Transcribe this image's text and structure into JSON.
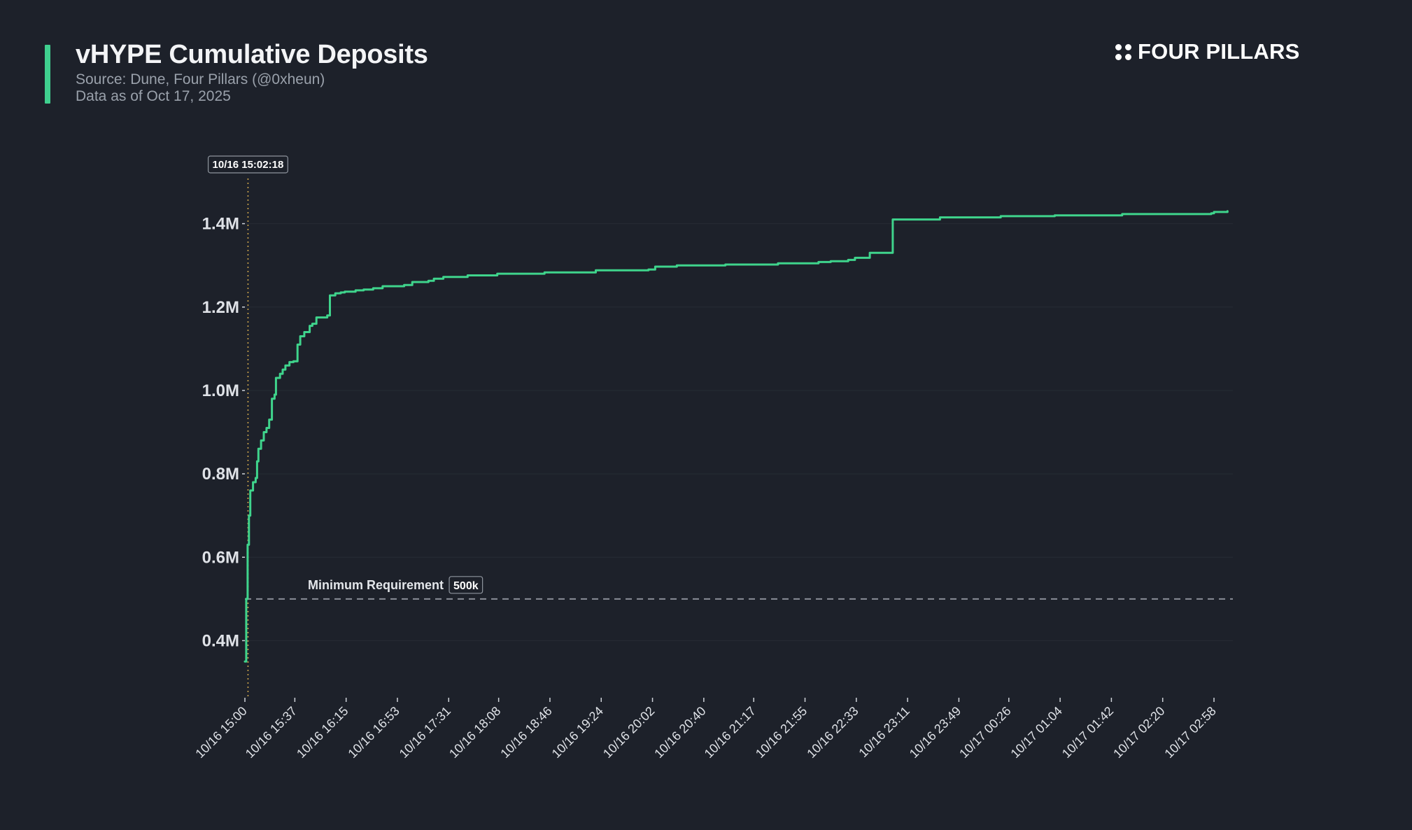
{
  "header": {
    "title": "vHYPE Cumulative Deposits",
    "source": "Source: Dune, Four Pillars (@0xheun)",
    "as_of": "Data as of Oct 17, 2025"
  },
  "brand": {
    "name": "FOUR PILLARS",
    "icon": "four-dots-icon"
  },
  "colors": {
    "background": "#1d212a",
    "line": "#3fd48c",
    "accent": "#3fcf8e",
    "marker_line": "#c9a24a",
    "threshold_line": "#8a8f98",
    "grid": "#272c35"
  },
  "chart_data": {
    "type": "line",
    "title": "vHYPE Cumulative Deposits",
    "xlabel": "",
    "ylabel": "",
    "ylim": [
      0.3,
      1.5
    ],
    "y_unit": "M",
    "yticks": [
      0.4,
      0.6,
      0.8,
      1.0,
      1.2,
      1.4
    ],
    "ytick_labels": [
      "0.4M",
      "0.6M",
      "0.8M",
      "1.0M",
      "1.2M",
      "1.4M"
    ],
    "xlim": [
      "10/16 15:00",
      "10/17 03:12"
    ],
    "xticks": [
      "10/16 15:00",
      "10/16 15:37",
      "10/16 16:15",
      "10/16 16:53",
      "10/16 17:31",
      "10/16 18:08",
      "10/16 18:46",
      "10/16 19:24",
      "10/16 20:02",
      "10/16 20:40",
      "10/16 21:17",
      "10/16 21:55",
      "10/16 22:33",
      "10/16 23:11",
      "10/16 23:49",
      "10/17 00:26",
      "10/17 01:04",
      "10/17 01:42",
      "10/17 02:20",
      "10/17 02:58"
    ],
    "grid": true,
    "series": [
      {
        "step": true,
        "x": [
          "10/16 15:00",
          "10/16 15:01",
          "10/16 15:02",
          "10/16 15:03",
          "10/16 15:04",
          "10/16 15:06",
          "10/16 15:08",
          "10/16 15:09",
          "10/16 15:10",
          "10/16 15:12",
          "10/16 15:14",
          "10/16 15:16",
          "10/16 15:18",
          "10/16 15:20",
          "10/16 15:22",
          "10/16 15:23",
          "10/16 15:26",
          "10/16 15:28",
          "10/16 15:30",
          "10/16 15:33",
          "10/16 15:36",
          "10/16 15:39",
          "10/16 15:41",
          "10/16 15:44",
          "10/16 15:48",
          "10/16 15:50",
          "10/16 15:53",
          "10/16 16:01",
          "10/16 16:03",
          "10/16 16:07",
          "10/16 16:11",
          "10/16 16:14",
          "10/16 16:22",
          "10/16 16:28",
          "10/16 16:35",
          "10/16 16:42",
          "10/16 16:58",
          "10/16 17:04",
          "10/16 17:16",
          "10/16 17:20",
          "10/16 17:27",
          "10/16 17:45",
          "10/16 18:07",
          "10/16 18:42",
          "10/16 19:20",
          "10/16 19:59",
          "10/16 20:04",
          "10/16 20:20",
          "10/16 20:56",
          "10/16 21:35",
          "10/16 22:05",
          "10/16 22:14",
          "10/16 22:27",
          "10/16 22:32",
          "10/16 22:43",
          "10/16 23:00",
          "10/16 23:35",
          "10/17 00:20",
          "10/17 01:00",
          "10/17 01:50",
          "10/17 02:56",
          "10/17 02:58",
          "10/17 03:08"
        ],
        "y": [
          0.35,
          0.5,
          0.63,
          0.7,
          0.76,
          0.78,
          0.79,
          0.83,
          0.86,
          0.88,
          0.9,
          0.91,
          0.93,
          0.98,
          0.99,
          1.03,
          1.04,
          1.05,
          1.06,
          1.068,
          1.07,
          1.11,
          1.13,
          1.14,
          1.155,
          1.16,
          1.175,
          1.18,
          1.228,
          1.233,
          1.235,
          1.237,
          1.24,
          1.242,
          1.245,
          1.25,
          1.253,
          1.26,
          1.263,
          1.268,
          1.272,
          1.276,
          1.28,
          1.283,
          1.288,
          1.29,
          1.297,
          1.3,
          1.302,
          1.305,
          1.308,
          1.31,
          1.313,
          1.318,
          1.33,
          1.41,
          1.415,
          1.418,
          1.42,
          1.423,
          1.425,
          1.428,
          1.43
        ]
      }
    ],
    "annotations": [
      {
        "type": "vline",
        "x": "10/16 15:02:18",
        "label": "10/16 15:02:18"
      },
      {
        "type": "hline",
        "y": 0.5,
        "label": "Minimum Requirement",
        "badge": "500k"
      }
    ]
  }
}
